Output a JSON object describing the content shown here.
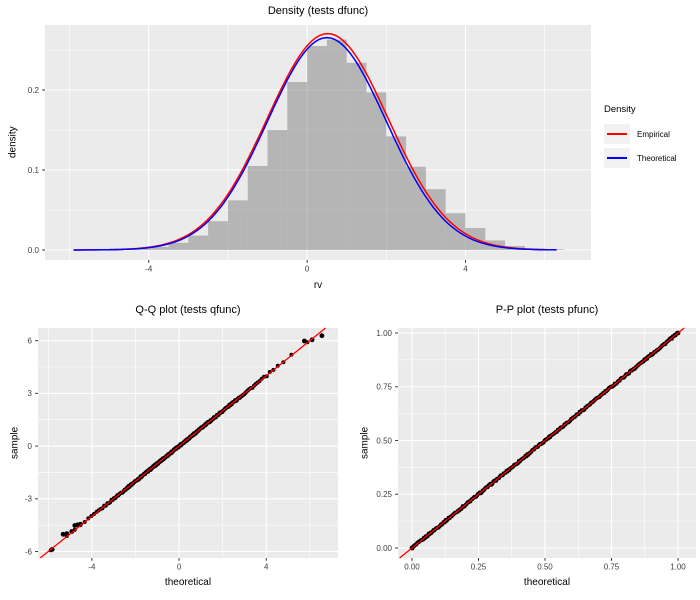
{
  "figure": {
    "background": "#ffffff",
    "panel_background": "#EBEBEB",
    "grid_color": "#FFFFFF",
    "tick_color": "#333333",
    "tick_label_color": "#404040",
    "legend_key_background": "#F2F2F2"
  },
  "chart_data": [
    {
      "type": "bar",
      "subtype": "histogram-with-density-curves",
      "title": "Density (tests dfunc)",
      "xlabel": "rv",
      "ylabel": "density",
      "xlim": [
        -6.62,
        7.17
      ],
      "ylim": [
        -0.0125,
        0.28125
      ],
      "grid": true,
      "x_ticks": {
        "major": [
          {
            "v": -4,
            "label": "-4"
          },
          {
            "v": 0,
            "label": "0"
          },
          {
            "v": 4,
            "label": "4"
          }
        ],
        "minor": [
          -6,
          -2,
          2,
          6
        ]
      },
      "y_ticks": {
        "major": [
          {
            "v": 0.0,
            "label": "0.0"
          },
          {
            "v": 0.1,
            "label": "0.1"
          },
          {
            "v": 0.2,
            "label": "0.2"
          }
        ],
        "minor": [
          0.05,
          0.15,
          0.25
        ]
      },
      "bar_fill": "#7F7F7F",
      "bar_opacity": 0.5,
      "bins": [
        {
          "x0": -5.5,
          "x1": -5.0,
          "density": 0.001
        },
        {
          "x0": -5.0,
          "x1": -4.5,
          "density": 0.002
        },
        {
          "x0": -4.5,
          "x1": -4.0,
          "density": 0.002
        },
        {
          "x0": -4.0,
          "x1": -3.5,
          "density": 0.004
        },
        {
          "x0": -3.5,
          "x1": -3.0,
          "density": 0.009
        },
        {
          "x0": -3.0,
          "x1": -2.5,
          "density": 0.018
        },
        {
          "x0": -2.5,
          "x1": -2.0,
          "density": 0.036
        },
        {
          "x0": -2.0,
          "x1": -1.5,
          "density": 0.062
        },
        {
          "x0": -1.5,
          "x1": -1.0,
          "density": 0.105
        },
        {
          "x0": -1.0,
          "x1": -0.5,
          "density": 0.15
        },
        {
          "x0": -0.5,
          "x1": 0.0,
          "density": 0.21
        },
        {
          "x0": 0.0,
          "x1": 0.5,
          "density": 0.255
        },
        {
          "x0": 0.5,
          "x1": 1.0,
          "density": 0.263
        },
        {
          "x0": 1.0,
          "x1": 1.5,
          "density": 0.234
        },
        {
          "x0": 1.5,
          "x1": 2.0,
          "density": 0.197
        },
        {
          "x0": 2.0,
          "x1": 2.5,
          "density": 0.142
        },
        {
          "x0": 2.5,
          "x1": 3.0,
          "density": 0.104
        },
        {
          "x0": 3.0,
          "x1": 3.5,
          "density": 0.076
        },
        {
          "x0": 3.5,
          "x1": 4.0,
          "density": 0.046
        },
        {
          "x0": 4.0,
          "x1": 4.5,
          "density": 0.0275
        },
        {
          "x0": 4.5,
          "x1": 5.0,
          "density": 0.012
        },
        {
          "x0": 5.0,
          "x1": 5.5,
          "density": 0.005
        },
        {
          "x0": 5.5,
          "x1": 6.0,
          "density": 0.002
        },
        {
          "x0": 6.0,
          "x1": 6.5,
          "density": 0.001
        }
      ],
      "curves": [
        {
          "name": "Empirical",
          "color": "#FF0000",
          "mean": 0.52,
          "sd": 1.53,
          "peak": 0.2705,
          "x_range": [
            -5.9,
            6.35
          ]
        },
        {
          "name": "Theoretical",
          "color": "#0000FF",
          "mean": 0.5,
          "sd": 1.5,
          "peak": 0.2655,
          "x_range": [
            -5.9,
            6.35
          ]
        }
      ],
      "legend": {
        "title": "Density",
        "entries": [
          {
            "label": "Empirical",
            "color": "#FF0000"
          },
          {
            "label": "Theoretical",
            "color": "#0000FF"
          }
        ]
      }
    },
    {
      "type": "scatter",
      "title": "Q-Q plot (tests qfunc)",
      "xlabel": "theoretical",
      "ylabel": "sample",
      "xlim": [
        -6.47,
        7.29
      ],
      "ylim": [
        -6.37,
        6.72
      ],
      "grid": true,
      "x_ticks": {
        "major": [
          {
            "v": -4,
            "label": "-4"
          },
          {
            "v": 0,
            "label": "0"
          },
          {
            "v": 4,
            "label": "4"
          }
        ],
        "minor": [
          -6,
          -2,
          2,
          6
        ]
      },
      "y_ticks": {
        "major": [
          {
            "v": -6,
            "label": "-6"
          },
          {
            "v": -3,
            "label": "-3"
          },
          {
            "v": 0,
            "label": "0"
          },
          {
            "v": 3,
            "label": "3"
          },
          {
            "v": 6,
            "label": "6"
          }
        ],
        "minor": [
          -4.5,
          -1.5,
          1.5,
          4.5
        ]
      },
      "point_color": "#000000",
      "band": {
        "distribution": "normal",
        "n_points": 280,
        "sd": 2.02,
        "jitter": 0.05
      },
      "outliers": [
        [
          -5.82,
          -5.88
        ],
        [
          -5.32,
          -5.02
        ],
        [
          -5.15,
          -4.98
        ],
        [
          -4.92,
          -4.86
        ],
        [
          -4.78,
          -4.52
        ],
        [
          -4.65,
          -4.48
        ],
        [
          -4.52,
          -4.45
        ],
        [
          5.75,
          5.98
        ],
        [
          6.1,
          6.05
        ],
        [
          6.55,
          6.28
        ]
      ],
      "ref_line": {
        "color": "#FF0000",
        "slope": 1,
        "intercept": 0
      }
    },
    {
      "type": "scatter",
      "title": "P-P plot (tests pfunc)",
      "xlabel": "theoretical",
      "ylabel": "sample",
      "xlim": [
        -0.0526,
        1.0677
      ],
      "ylim": [
        -0.0465,
        1.0233
      ],
      "grid": true,
      "x_ticks": {
        "major": [
          {
            "v": 0,
            "label": "0.00"
          },
          {
            "v": 0.25,
            "label": "0.25"
          },
          {
            "v": 0.5,
            "label": "0.50"
          },
          {
            "v": 0.75,
            "label": "0.75"
          },
          {
            "v": 1,
            "label": "1.00"
          }
        ],
        "minor": [
          0.125,
          0.375,
          0.625,
          0.875
        ]
      },
      "y_ticks": {
        "major": [
          {
            "v": 0,
            "label": "0.00"
          },
          {
            "v": 0.25,
            "label": "0.25"
          },
          {
            "v": 0.5,
            "label": "0.50"
          },
          {
            "v": 0.75,
            "label": "0.75"
          },
          {
            "v": 1,
            "label": "1.00"
          }
        ],
        "minor": [
          0.125,
          0.375,
          0.625,
          0.875
        ]
      },
      "point_color": "#000000",
      "band": {
        "distribution": "uniform",
        "n_points": 280,
        "jitter": 0.004
      },
      "outliers": [
        [
          0,
          0
        ],
        [
          1,
          1
        ]
      ],
      "ref_line": {
        "color": "#FF0000",
        "slope": 1,
        "intercept": 0
      }
    }
  ]
}
